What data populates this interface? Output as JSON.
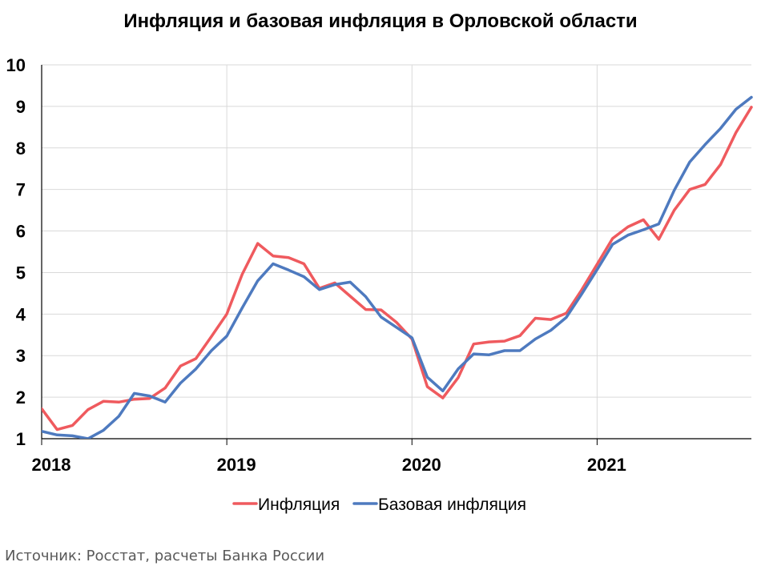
{
  "chart_data": {
    "type": "line",
    "title": "Инфляция и базовая инфляция в Орловской области",
    "xlabel": "",
    "ylabel": "",
    "ylim": [
      1,
      10
    ],
    "yticks": [
      1,
      2,
      3,
      4,
      5,
      6,
      7,
      8,
      9,
      10
    ],
    "x_tick_labels": [
      "2018",
      "2019",
      "2020",
      "2021"
    ],
    "grid": true,
    "legend_position": "bottom",
    "series": [
      {
        "name": "Инфляция",
        "color": "#EF5A5E",
        "values": [
          1.72,
          1.22,
          1.32,
          1.7,
          1.9,
          1.88,
          1.95,
          1.97,
          2.22,
          2.75,
          2.93,
          3.46,
          4.0,
          4.96,
          5.7,
          5.4,
          5.36,
          5.21,
          4.62,
          4.75,
          4.43,
          4.11,
          4.1,
          3.8,
          3.4,
          2.25,
          1.98,
          2.47,
          3.28,
          3.33,
          3.35,
          3.48,
          3.9,
          3.87,
          4.02,
          4.58,
          5.2,
          5.82,
          6.1,
          6.27,
          5.8,
          6.5,
          7.0,
          7.12,
          7.6,
          8.37,
          8.98
        ]
      },
      {
        "name": "Базовая инфляция",
        "color": "#4E7ABF",
        "values": [
          1.18,
          1.09,
          1.07,
          1.0,
          1.2,
          1.54,
          2.09,
          2.03,
          1.88,
          2.34,
          2.68,
          3.12,
          3.47,
          4.15,
          4.8,
          5.21,
          5.06,
          4.9,
          4.59,
          4.71,
          4.77,
          4.42,
          3.93,
          3.68,
          3.43,
          2.48,
          2.15,
          2.68,
          3.04,
          3.02,
          3.12,
          3.12,
          3.4,
          3.61,
          3.92,
          4.48,
          5.07,
          5.68,
          5.9,
          6.03,
          6.17,
          6.98,
          7.66,
          8.08,
          8.47,
          8.93,
          9.22
        ]
      }
    ]
  },
  "footer": {
    "source": "Источник: Росстат, расчеты Банка России"
  }
}
